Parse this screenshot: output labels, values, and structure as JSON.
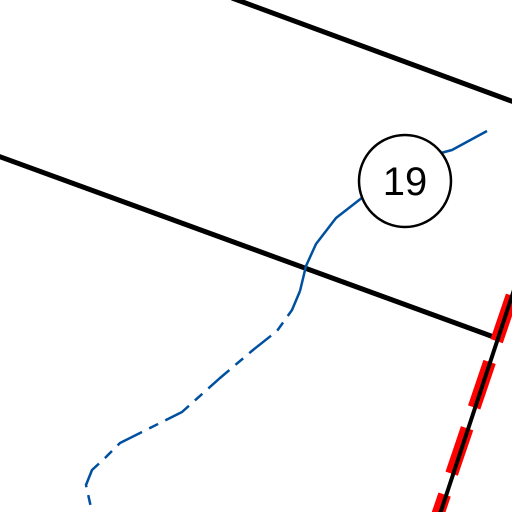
{
  "map": {
    "parcel_label": "19",
    "colors": {
      "background": "#ffffff",
      "boundary_line": "#000000",
      "watercourse": "#0050a0",
      "highlight_boundary": "#ff0000",
      "label_ring": "#000000",
      "label_text": "#000000"
    }
  }
}
